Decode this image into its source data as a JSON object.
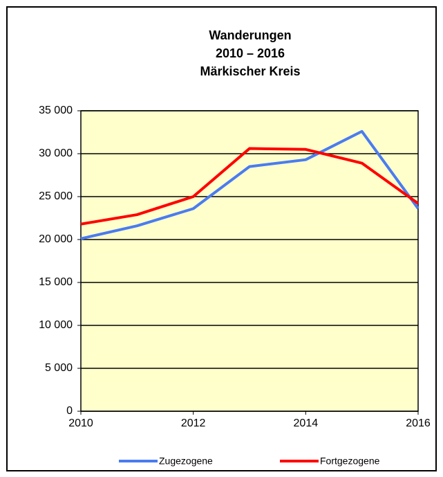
{
  "chart_data": {
    "type": "line",
    "title": [
      "Wanderungen",
      "2010 – 2016",
      "Märkischer Kreis"
    ],
    "x": [
      2010,
      2011,
      2012,
      2013,
      2014,
      2015,
      2016
    ],
    "series": [
      {
        "name": "Zugezogene",
        "color": "#4a7cf0",
        "values": [
          20100,
          21600,
          23600,
          28500,
          29300,
          32600,
          23600
        ]
      },
      {
        "name": "Fortgezogene",
        "color": "#ff0000",
        "values": [
          21800,
          22900,
          25000,
          30600,
          30500,
          28900,
          24200
        ]
      }
    ],
    "xlim": [
      2010,
      2016
    ],
    "xticks": [
      2010,
      2012,
      2014,
      2016
    ],
    "ylim": [
      0,
      35000
    ],
    "yticks": [
      0,
      {
        "value": 5000,
        "label": "5 000"
      },
      {
        "value": 10000,
        "label": "10 000"
      },
      {
        "value": 15000,
        "label": "15 000"
      },
      {
        "value": 20000,
        "label": "20 000"
      },
      {
        "value": 25000,
        "label": "25 000"
      },
      {
        "value": 30000,
        "label": "30 000"
      },
      {
        "value": 35000,
        "label": "35 000"
      }
    ],
    "grid": true,
    "plot_background": "#ffffcc",
    "legend": "bottom"
  }
}
